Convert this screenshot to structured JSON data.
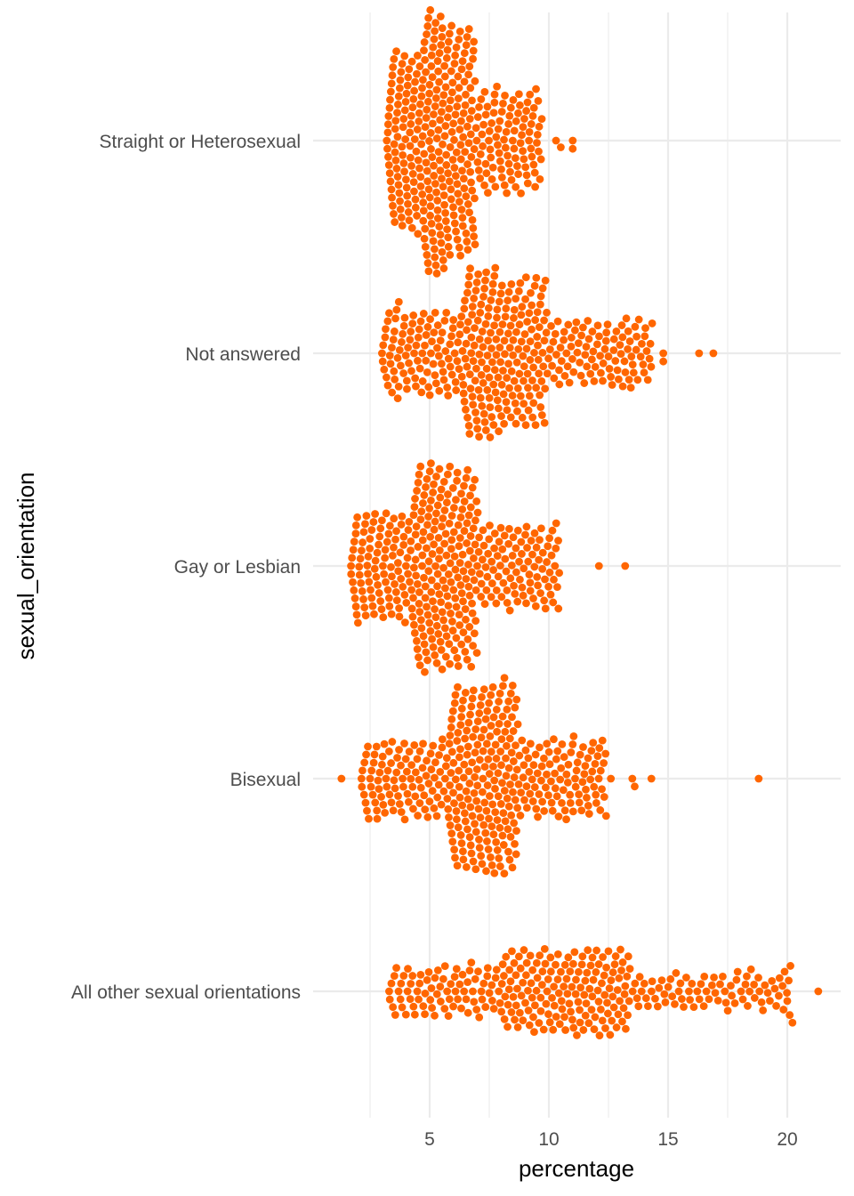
{
  "chart_data": {
    "type": "scatter",
    "subtype": "beeswarm",
    "title": "",
    "xlabel": "percentage",
    "ylabel": "sexual_orientation",
    "xlim": [
      1.0,
      22.5
    ],
    "x_ticks": [
      5,
      10,
      15,
      20
    ],
    "x_tick_labels": [
      "5",
      "10",
      "15",
      "20"
    ],
    "x_minor_ticks": [
      2.5,
      7.5,
      12.5,
      17.5
    ],
    "grid": true,
    "legend": "none",
    "point_color": "#FF6600",
    "categories": [
      "Straight or Heterosexual",
      "Not answered",
      "Gay or Lesbian",
      "Bisexual",
      "All other sexual orientations"
    ],
    "series": [
      {
        "name": "Straight or Heterosexual",
        "n": 400,
        "summary": {
          "min": 3.2,
          "q1": 4.7,
          "median": 5.7,
          "q3": 6.9,
          "max": 11.0
        },
        "outliers": [
          10.3,
          10.5,
          11.0,
          11.0
        ]
      },
      {
        "name": "Not answered",
        "n": 400,
        "summary": {
          "min": 3.0,
          "q1": 6.4,
          "median": 8.0,
          "q3": 9.9,
          "max": 16.9
        },
        "outliers": [
          3.0,
          3.5,
          3.7,
          13.1,
          13.4,
          14.8,
          14.8,
          16.3,
          16.9
        ]
      },
      {
        "name": "Gay or Lesbian",
        "n": 400,
        "summary": {
          "min": 1.7,
          "q1": 4.3,
          "median": 5.6,
          "q3": 7.0,
          "max": 13.2
        },
        "outliers": [
          1.7,
          1.9,
          10.4,
          12.1,
          13.2
        ]
      },
      {
        "name": "Bisexual",
        "n": 400,
        "summary": {
          "min": 1.3,
          "q1": 5.8,
          "median": 7.3,
          "q3": 8.7,
          "max": 18.8
        },
        "outliers": [
          1.3,
          2.8,
          12.4,
          12.6,
          13.5,
          13.6,
          14.3,
          18.8
        ]
      },
      {
        "name": "All other sexual orientations",
        "n": 320,
        "summary": {
          "min": 3.3,
          "q1": 8.0,
          "median": 10.8,
          "q3": 13.4,
          "max": 21.3
        },
        "outliers": [
          3.3,
          18.3,
          19.8,
          20.0,
          20.1,
          21.3
        ]
      }
    ]
  }
}
